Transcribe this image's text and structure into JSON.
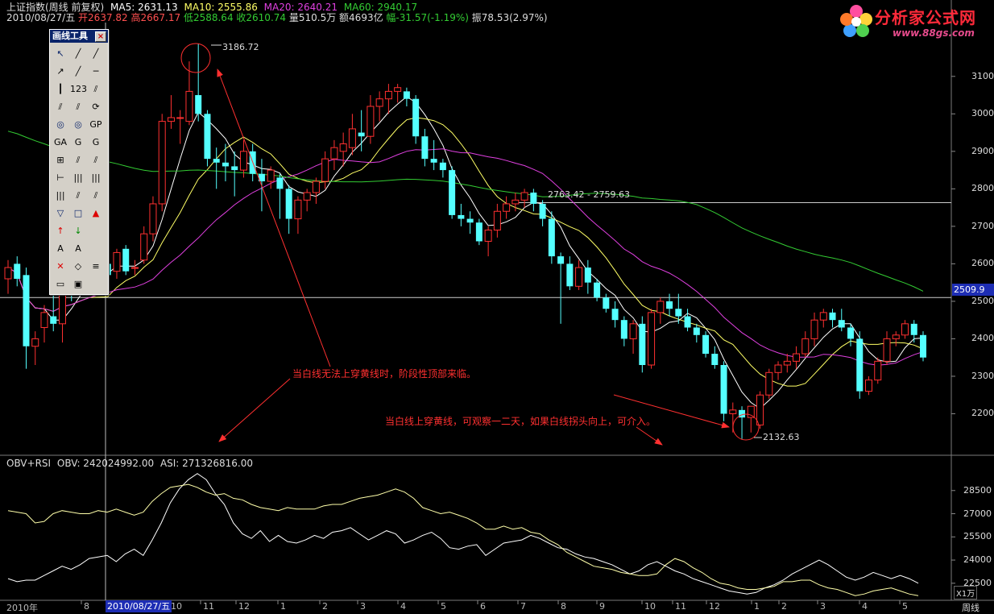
{
  "header": {
    "line1_prefix": "上证指数(周线 前复权)",
    "ma5": "MA5: 2631.13",
    "ma10": "MA10: 2555.86",
    "ma20": "MA20: 2640.21",
    "ma60": "MA60: 2940.17",
    "date": "2010/08/27/五",
    "open": "开2637.82",
    "high": "高2667.17",
    "low": "低2588.64",
    "close": "收2610.74",
    "volume": "量510.5万",
    "amount": "额4693亿",
    "change": "幅-31.57(-1.19%)",
    "amplitude": "振78.53(2.97%)"
  },
  "logo": {
    "brand": "分析家公式网",
    "url": "www.88gs.com"
  },
  "toolbox": {
    "title": "画线工具",
    "close": "×",
    "tools": [
      "↖",
      "╱",
      "╱",
      "↗",
      "╱",
      "─",
      "┃",
      "123",
      "⫽",
      "⫽",
      "⫽",
      "⟳",
      "◎",
      "◎",
      "GP",
      "GA",
      "G",
      "G",
      "⊞",
      "⫽",
      "⫽",
      "⊢",
      "|||",
      "|||",
      "|||",
      "⫽",
      "⫽",
      "▽",
      "□",
      "▲",
      "↑",
      "↓",
      "",
      "A",
      "A",
      "",
      "✕",
      "◇",
      "≡",
      "▭",
      "▣",
      ""
    ]
  },
  "obv": {
    "label": "OBV+RSI",
    "obv": "OBV: 242024992.00",
    "asi": "ASI: 271326816.00"
  },
  "annotations": {
    "top": "当白线无法上穿黄线时，阶段性顶部来临。",
    "bottom": "当白线上穿黄线，可观察一二天，如果白线拐头向上，可介入。",
    "high_label": "3186.72",
    "low_label": "2132.63",
    "mid_label": "2763.42 - 2759.63"
  },
  "cursor": {
    "date": "2010/08/27/五",
    "price": "2509.9"
  },
  "axis": {
    "bottom_left": "2010年",
    "week": "周线",
    "unit": "X1万",
    "months": [
      {
        "t": "8",
        "x": 104
      },
      {
        "t": "10",
        "x": 212
      },
      {
        "t": "11",
        "x": 252
      },
      {
        "t": "12",
        "x": 296
      },
      {
        "t": "1",
        "x": 348
      },
      {
        "t": "2",
        "x": 400
      },
      {
        "t": "3",
        "x": 447
      },
      {
        "t": "4",
        "x": 497
      },
      {
        "t": "5",
        "x": 547
      },
      {
        "t": "6",
        "x": 596
      },
      {
        "t": "7",
        "x": 646
      },
      {
        "t": "8",
        "x": 696
      },
      {
        "t": "9",
        "x": 744
      },
      {
        "t": "10",
        "x": 800
      },
      {
        "t": "11",
        "x": 838
      },
      {
        "t": "12",
        "x": 880
      },
      {
        "t": "1",
        "x": 936
      },
      {
        "t": "2",
        "x": 970
      },
      {
        "t": "3",
        "x": 1018
      },
      {
        "t": "4",
        "x": 1070
      },
      {
        "t": "5",
        "x": 1120
      }
    ]
  },
  "chart_data": [
    {
      "type": "candlestick",
      "title": "上证指数(周线 前复权)",
      "ylim": [
        2100,
        3200
      ],
      "yticks": [
        2200,
        2300,
        2400,
        2500,
        2600,
        2700,
        2800,
        2900,
        3000,
        3100
      ],
      "reference_lines": [
        2509.9,
        2763
      ],
      "series_names": [
        "MA5",
        "MA10",
        "MA20",
        "MA60"
      ],
      "colors": {
        "up": "#ff3030",
        "down": "#54ffff",
        "ma5": "#ffffff",
        "ma10": "#ffff66",
        "ma20": "#e040e0",
        "ma60": "#33cc33"
      },
      "candles": [
        {
          "o": 2560,
          "h": 2610,
          "l": 2520,
          "c": 2590
        },
        {
          "o": 2600,
          "h": 2620,
          "l": 2540,
          "c": 2560
        },
        {
          "o": 2570,
          "h": 2590,
          "l": 2320,
          "c": 2380
        },
        {
          "o": 2380,
          "h": 2420,
          "l": 2330,
          "c": 2400
        },
        {
          "o": 2430,
          "h": 2490,
          "l": 2390,
          "c": 2470
        },
        {
          "o": 2460,
          "h": 2520,
          "l": 2420,
          "c": 2440
        },
        {
          "o": 2440,
          "h": 2570,
          "l": 2390,
          "c": 2560
        },
        {
          "o": 2560,
          "h": 2580,
          "l": 2500,
          "c": 2530
        },
        {
          "o": 2530,
          "h": 2600,
          "l": 2520,
          "c": 2580
        },
        {
          "o": 2575,
          "h": 2610,
          "l": 2550,
          "c": 2590
        },
        {
          "o": 2590,
          "h": 2630,
          "l": 2570,
          "c": 2600
        },
        {
          "o": 2600,
          "h": 2620,
          "l": 2560,
          "c": 2570
        },
        {
          "o": 2580,
          "h": 2640,
          "l": 2560,
          "c": 2630
        },
        {
          "o": 2640,
          "h": 2650,
          "l": 2570,
          "c": 2580
        },
        {
          "o": 2590,
          "h": 2610,
          "l": 2570,
          "c": 2590
        },
        {
          "o": 2610,
          "h": 2700,
          "l": 2600,
          "c": 2680
        },
        {
          "o": 2680,
          "h": 2780,
          "l": 2660,
          "c": 2760
        },
        {
          "o": 2760,
          "h": 3000,
          "l": 2740,
          "c": 2980
        },
        {
          "o": 2980,
          "h": 3050,
          "l": 2960,
          "c": 2990
        },
        {
          "o": 2990,
          "h": 3010,
          "l": 2920,
          "c": 2990
        },
        {
          "o": 2980,
          "h": 3140,
          "l": 2970,
          "c": 3060
        },
        {
          "o": 3050,
          "h": 3186.72,
          "l": 2980,
          "c": 3000
        },
        {
          "o": 3000,
          "h": 3010,
          "l": 2860,
          "c": 2880
        },
        {
          "o": 2880,
          "h": 2910,
          "l": 2800,
          "c": 2870
        },
        {
          "o": 2870,
          "h": 2920,
          "l": 2820,
          "c": 2860
        },
        {
          "o": 2860,
          "h": 2900,
          "l": 2780,
          "c": 2850
        },
        {
          "o": 2850,
          "h": 2930,
          "l": 2830,
          "c": 2900
        },
        {
          "o": 2900,
          "h": 2920,
          "l": 2820,
          "c": 2840
        },
        {
          "o": 2840,
          "h": 2880,
          "l": 2740,
          "c": 2820
        },
        {
          "o": 2820,
          "h": 2860,
          "l": 2800,
          "c": 2850
        },
        {
          "o": 2830,
          "h": 2840,
          "l": 2720,
          "c": 2800
        },
        {
          "o": 2800,
          "h": 2810,
          "l": 2680,
          "c": 2720
        },
        {
          "o": 2720,
          "h": 2780,
          "l": 2680,
          "c": 2770
        },
        {
          "o": 2770,
          "h": 2800,
          "l": 2740,
          "c": 2790
        },
        {
          "o": 2790,
          "h": 2830,
          "l": 2760,
          "c": 2820
        },
        {
          "o": 2820,
          "h": 2900,
          "l": 2800,
          "c": 2880
        },
        {
          "o": 2880,
          "h": 2930,
          "l": 2850,
          "c": 2910
        },
        {
          "o": 2900,
          "h": 2950,
          "l": 2860,
          "c": 2920
        },
        {
          "o": 2910,
          "h": 3000,
          "l": 2890,
          "c": 2960
        },
        {
          "o": 2950,
          "h": 3010,
          "l": 2900,
          "c": 2940
        },
        {
          "o": 2940,
          "h": 3050,
          "l": 2920,
          "c": 3020
        },
        {
          "o": 3020,
          "h": 3060,
          "l": 2980,
          "c": 3040
        },
        {
          "o": 3040,
          "h": 3080,
          "l": 3000,
          "c": 3060
        },
        {
          "o": 3060,
          "h": 3080,
          "l": 3030,
          "c": 3070
        },
        {
          "o": 3060,
          "h": 3070,
          "l": 3020,
          "c": 3040
        },
        {
          "o": 3040,
          "h": 3050,
          "l": 2920,
          "c": 2940
        },
        {
          "o": 2940,
          "h": 2960,
          "l": 2860,
          "c": 2880
        },
        {
          "o": 2880,
          "h": 2930,
          "l": 2850,
          "c": 2870
        },
        {
          "o": 2870,
          "h": 2880,
          "l": 2830,
          "c": 2850
        },
        {
          "o": 2850,
          "h": 2860,
          "l": 2720,
          "c": 2730
        },
        {
          "o": 2730,
          "h": 2760,
          "l": 2700,
          "c": 2720
        },
        {
          "o": 2720,
          "h": 2740,
          "l": 2680,
          "c": 2710
        },
        {
          "o": 2710,
          "h": 2720,
          "l": 2650,
          "c": 2660
        },
        {
          "o": 2660,
          "h": 2700,
          "l": 2620,
          "c": 2690
        },
        {
          "o": 2690,
          "h": 2760,
          "l": 2670,
          "c": 2740
        },
        {
          "o": 2740,
          "h": 2780,
          "l": 2720,
          "c": 2760
        },
        {
          "o": 2760,
          "h": 2790,
          "l": 2740,
          "c": 2770
        },
        {
          "o": 2770,
          "h": 2800,
          "l": 2750,
          "c": 2790
        },
        {
          "o": 2790,
          "h": 2800,
          "l": 2740,
          "c": 2760
        },
        {
          "o": 2760,
          "h": 2770,
          "l": 2700,
          "c": 2720
        },
        {
          "o": 2720,
          "h": 2740,
          "l": 2600,
          "c": 2620
        },
        {
          "o": 2620,
          "h": 2630,
          "l": 2440,
          "c": 2600
        },
        {
          "o": 2600,
          "h": 2620,
          "l": 2530,
          "c": 2540
        },
        {
          "o": 2540,
          "h": 2610,
          "l": 2530,
          "c": 2590
        },
        {
          "o": 2590,
          "h": 2610,
          "l": 2520,
          "c": 2550
        },
        {
          "o": 2550,
          "h": 2560,
          "l": 2500,
          "c": 2510
        },
        {
          "o": 2510,
          "h": 2520,
          "l": 2470,
          "c": 2480
        },
        {
          "o": 2480,
          "h": 2500,
          "l": 2430,
          "c": 2450
        },
        {
          "o": 2450,
          "h": 2460,
          "l": 2380,
          "c": 2400
        },
        {
          "o": 2400,
          "h": 2450,
          "l": 2360,
          "c": 2440
        },
        {
          "o": 2440,
          "h": 2460,
          "l": 2310,
          "c": 2330
        },
        {
          "o": 2330,
          "h": 2480,
          "l": 2320,
          "c": 2470
        },
        {
          "o": 2470,
          "h": 2510,
          "l": 2440,
          "c": 2500
        },
        {
          "o": 2500,
          "h": 2520,
          "l": 2460,
          "c": 2480
        },
        {
          "o": 2480,
          "h": 2520,
          "l": 2440,
          "c": 2460
        },
        {
          "o": 2460,
          "h": 2480,
          "l": 2420,
          "c": 2430
        },
        {
          "o": 2430,
          "h": 2440,
          "l": 2390,
          "c": 2410
        },
        {
          "o": 2410,
          "h": 2420,
          "l": 2350,
          "c": 2360
        },
        {
          "o": 2360,
          "h": 2380,
          "l": 2320,
          "c": 2330
        },
        {
          "o": 2330,
          "h": 2340,
          "l": 2180,
          "c": 2200
        },
        {
          "o": 2200,
          "h": 2230,
          "l": 2150,
          "c": 2210
        },
        {
          "o": 2210,
          "h": 2220,
          "l": 2132.63,
          "c": 2190
        },
        {
          "o": 2190,
          "h": 2220,
          "l": 2150,
          "c": 2220
        },
        {
          "o": 2170,
          "h": 2260,
          "l": 2160,
          "c": 2250
        },
        {
          "o": 2250,
          "h": 2320,
          "l": 2240,
          "c": 2310
        },
        {
          "o": 2310,
          "h": 2340,
          "l": 2290,
          "c": 2330
        },
        {
          "o": 2330,
          "h": 2360,
          "l": 2310,
          "c": 2340
        },
        {
          "o": 2340,
          "h": 2380,
          "l": 2320,
          "c": 2360
        },
        {
          "o": 2360,
          "h": 2420,
          "l": 2350,
          "c": 2400
        },
        {
          "o": 2400,
          "h": 2470,
          "l": 2380,
          "c": 2450
        },
        {
          "o": 2450,
          "h": 2480,
          "l": 2430,
          "c": 2470
        },
        {
          "o": 2470,
          "h": 2480,
          "l": 2430,
          "c": 2450
        },
        {
          "o": 2450,
          "h": 2480,
          "l": 2420,
          "c": 2430
        },
        {
          "o": 2430,
          "h": 2440,
          "l": 2380,
          "c": 2400
        },
        {
          "o": 2400,
          "h": 2420,
          "l": 2240,
          "c": 2260
        },
        {
          "o": 2260,
          "h": 2300,
          "l": 2250,
          "c": 2290
        },
        {
          "o": 2290,
          "h": 2350,
          "l": 2280,
          "c": 2340
        },
        {
          "o": 2340,
          "h": 2420,
          "l": 2330,
          "c": 2400
        },
        {
          "o": 2400,
          "h": 2420,
          "l": 2380,
          "c": 2410
        },
        {
          "o": 2410,
          "h": 2450,
          "l": 2400,
          "c": 2440
        },
        {
          "o": 2440,
          "h": 2450,
          "l": 2390,
          "c": 2410
        },
        {
          "o": 2410,
          "h": 2420,
          "l": 2340,
          "c": 2350
        }
      ]
    },
    {
      "type": "line",
      "title": "OBV+RSI",
      "ylim": [
        21500,
        30000
      ],
      "yticks": [
        22500,
        24000,
        25500,
        27000,
        28500
      ],
      "series": [
        {
          "name": "OBV",
          "color": "#ffffff",
          "values": [
            22800,
            22600,
            22700,
            22700,
            23000,
            23300,
            23600,
            23400,
            23700,
            24100,
            24200,
            24300,
            23900,
            24400,
            24700,
            24300,
            25300,
            26400,
            27700,
            28600,
            29200,
            29600,
            29200,
            28300,
            27600,
            26400,
            25700,
            25400,
            25900,
            25200,
            25600,
            25200,
            25100,
            25300,
            25600,
            25400,
            25800,
            25900,
            26100,
            25700,
            25300,
            25600,
            25900,
            25700,
            25100,
            25300,
            25600,
            25800,
            25400,
            24800,
            24700,
            24900,
            25000,
            24300,
            24700,
            25100,
            25200,
            25300,
            25600,
            25400,
            25100,
            24800,
            24700,
            24400,
            24200,
            24100,
            23900,
            23700,
            23400,
            23100,
            23300,
            23700,
            23900,
            23600,
            23300,
            23100,
            22800,
            22600,
            22400,
            22200,
            22000,
            21900,
            21800,
            21900,
            22200,
            22400,
            22700,
            23100,
            23400,
            23700,
            24000,
            23700,
            23300,
            22900,
            22700,
            22900,
            23200,
            23000,
            22800,
            23000,
            22800,
            22500
          ]
        },
        {
          "name": "RSI",
          "color": "#ffffaa",
          "values": [
            27200,
            27100,
            27000,
            26400,
            26500,
            27000,
            27200,
            27100,
            27000,
            27000,
            27200,
            27100,
            27300,
            27100,
            26900,
            27100,
            27800,
            28300,
            28700,
            28800,
            28900,
            28700,
            28400,
            28200,
            28300,
            28000,
            27900,
            27600,
            27400,
            27300,
            27200,
            27400,
            27300,
            27300,
            27300,
            27500,
            27600,
            27600,
            27800,
            28000,
            28100,
            28200,
            28400,
            28600,
            28400,
            28000,
            27400,
            27200,
            27000,
            27100,
            26900,
            26700,
            26400,
            26000,
            26000,
            26200,
            26000,
            26100,
            25800,
            25700,
            25300,
            25000,
            24500,
            24200,
            23900,
            23600,
            23500,
            23400,
            23200,
            23100,
            23000,
            23000,
            23100,
            23700,
            24100,
            23900,
            23500,
            23200,
            22800,
            22500,
            22400,
            22200,
            22100,
            22100,
            22200,
            22300,
            22600,
            22600,
            22700,
            22700,
            22400,
            22200,
            22100,
            21900,
            21700,
            21800,
            22000,
            22100,
            22200,
            22000,
            21800,
            21700
          ]
        }
      ]
    }
  ]
}
